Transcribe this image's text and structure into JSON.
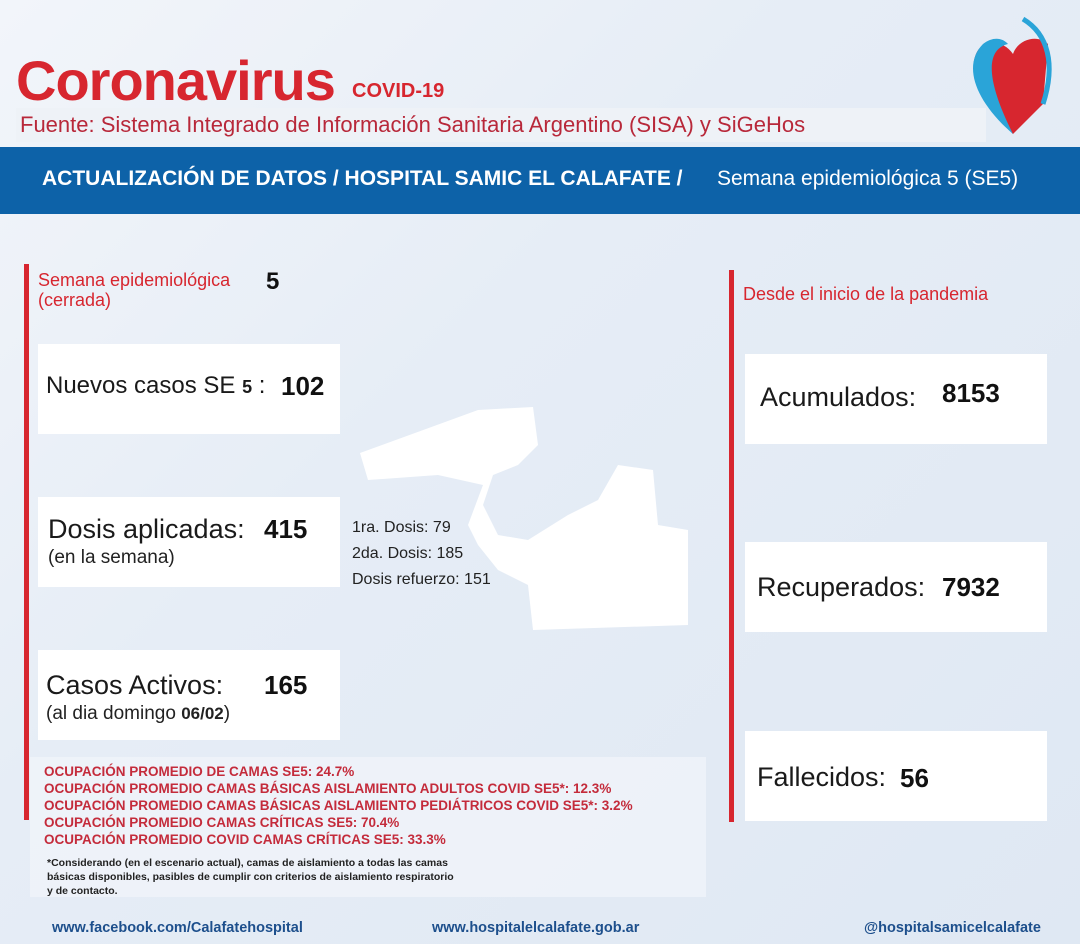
{
  "header": {
    "title": "Coronavirus",
    "subtitle": "COVID-19",
    "source": "Fuente: Sistema Integrado de Información Sanitaria Argentino (SISA) y SiGeHos",
    "logo_icon": "heart-map-logo"
  },
  "banner": {
    "bold": "ACTUALIZACIÓN DE DATOS / HOSPITAL SAMIC EL CALAFATE /",
    "week": "Semana epidemiológica 5 (SE5)"
  },
  "left": {
    "week_label_1": "Semana epidemiológica",
    "week_label_2": "(cerrada)",
    "week_number": "5",
    "nuevos": {
      "label": "Nuevos casos SE",
      "se": "5",
      "sep": ":",
      "value": "102"
    },
    "dosis": {
      "label": "Dosis aplicadas:",
      "value": "415",
      "sub": "(en la semana)",
      "breakdown": [
        "1ra. Dosis: 79",
        "2da. Dosis: 185",
        "Dosis refuerzo: 151"
      ]
    },
    "activos": {
      "label": "Casos Activos:",
      "value": "165",
      "sub": "(al dia domingo",
      "date": "06/02",
      "close": ")"
    }
  },
  "right": {
    "heading": "Desde el inicio de la pandemia",
    "acumulados": {
      "label": "Acumulados:",
      "value": "8153"
    },
    "recuperados": {
      "label": "Recuperados:",
      "value": "7932"
    },
    "fallecidos": {
      "label": "Fallecidos:",
      "value": "56"
    }
  },
  "occupancy": [
    "OCUPACIÓN PROMEDIO DE CAMAS SE5: 24.7%",
    "OCUPACIÓN PROMEDIO CAMAS BÁSICAS AISLAMIENTO ADULTOS COVID SE5*: 12.3%",
    "OCUPACIÓN PROMEDIO CAMAS BÁSICAS AISLAMIENTO PEDIÁTRICOS COVID SE5*: 3.2%",
    "OCUPACIÓN PROMEDIO CAMAS CRÍTICAS SE5: 70.4%",
    "OCUPACIÓN PROMEDIO COVID CAMAS CRÍTICAS SE5: 33.3%"
  ],
  "note": [
    "*Considerando (en el escenario actual), camas de aislamiento a todas las camas",
    "básicas disponibles, pasibles de cumplir con criterios de aislamiento respiratorio",
    "y de contacto."
  ],
  "footer": {
    "facebook": "www.facebook.com/Calafatehospital",
    "web": "www.hospitalelcalafate.gob.ar",
    "social": "@hospitalsamicelcalafate"
  },
  "colors": {
    "red": "#d7262f",
    "blue": "#0d62a8"
  }
}
